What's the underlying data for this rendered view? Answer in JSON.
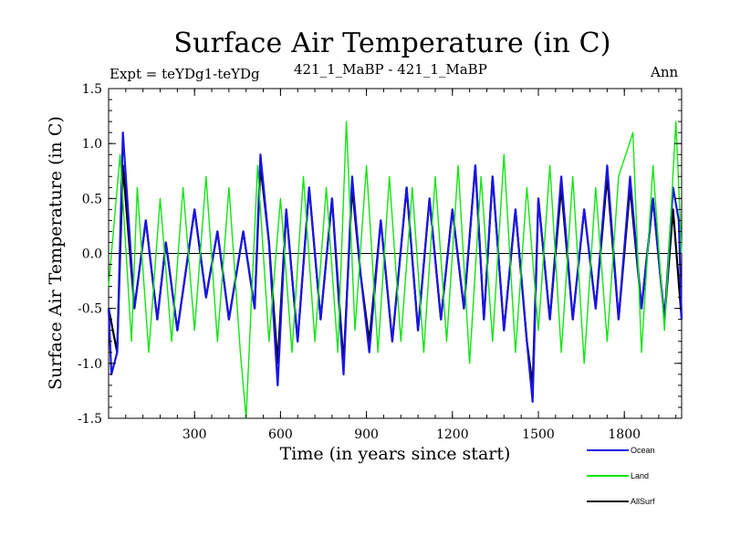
{
  "chart_data": {
    "type": "line",
    "title": "Surface Air Temperature (in C)",
    "subtitle_left": "Expt = teYDg1-teYDg",
    "subtitle_center": "421_1_MaBP - 421_1_MaBP",
    "subtitle_right": "Ann",
    "xlabel": "Time (in years since start)",
    "ylabel": "Surface Air Temperature (in C)",
    "xlim": [
      0,
      2000
    ],
    "ylim": [
      -1.5,
      1.5
    ],
    "xticks": [
      300,
      600,
      900,
      1200,
      1500,
      1800
    ],
    "xtick_labels": [
      "300",
      "600",
      "900",
      "1200",
      "1500",
      "1800"
    ],
    "yticks": [
      -1.5,
      -1.0,
      -0.5,
      0.0,
      0.5,
      1.0,
      1.5
    ],
    "ytick_labels": [
      "-1.5",
      "-1.0",
      "-0.5",
      "0.0",
      "0.5",
      "1.0",
      "1.5"
    ],
    "reference_line": 0.0,
    "legend_position": "bottom-right",
    "series": [
      {
        "name": "AllSurf",
        "color": "#000000",
        "x": [
          0,
          30,
          50,
          90,
          130,
          170,
          200,
          240,
          300,
          340,
          380,
          420,
          470,
          510,
          530,
          560,
          590,
          620,
          660,
          700,
          740,
          780,
          820,
          850,
          880,
          910,
          950,
          990,
          1040,
          1080,
          1120,
          1160,
          1200,
          1240,
          1280,
          1310,
          1340,
          1380,
          1420,
          1460,
          1480,
          1500,
          1540,
          1580,
          1620,
          1660,
          1700,
          1740,
          1780,
          1820,
          1860,
          1900,
          1940,
          1970,
          2000
        ],
        "y": [
          -0.5,
          -0.9,
          0.8,
          -0.5,
          0.3,
          -0.6,
          0.1,
          -0.7,
          0.4,
          -0.4,
          0.2,
          -0.6,
          0.2,
          -0.5,
          0.8,
          0.1,
          -1.0,
          0.4,
          -0.8,
          0.6,
          -0.6,
          0.5,
          -1.0,
          0.6,
          -0.2,
          -0.8,
          0.3,
          -0.8,
          0.6,
          -0.7,
          0.5,
          -0.6,
          0.4,
          -0.5,
          0.8,
          -0.6,
          0.7,
          -0.7,
          0.4,
          -0.8,
          -1.2,
          0.5,
          -0.6,
          0.6,
          -0.6,
          0.4,
          -0.5,
          0.7,
          -0.6,
          0.6,
          -0.5,
          0.5,
          -0.6,
          0.4,
          -0.6
        ]
      },
      {
        "name": "Ocean",
        "color": "#1a14e6",
        "x": [
          0,
          10,
          30,
          50,
          90,
          130,
          170,
          200,
          240,
          300,
          340,
          380,
          420,
          470,
          510,
          530,
          560,
          590,
          620,
          660,
          700,
          740,
          780,
          820,
          850,
          880,
          910,
          950,
          990,
          1040,
          1080,
          1120,
          1160,
          1200,
          1240,
          1280,
          1310,
          1340,
          1380,
          1420,
          1460,
          1480,
          1500,
          1540,
          1580,
          1620,
          1660,
          1700,
          1740,
          1780,
          1820,
          1860,
          1900,
          1940,
          1970,
          1990,
          2000
        ],
        "y": [
          -0.5,
          -1.1,
          -0.9,
          1.1,
          -0.5,
          0.3,
          -0.6,
          0.1,
          -0.7,
          0.4,
          -0.4,
          0.2,
          -0.6,
          0.2,
          -0.5,
          0.9,
          0.1,
          -1.2,
          0.4,
          -0.8,
          0.6,
          -0.6,
          0.5,
          -1.1,
          0.7,
          -0.2,
          -0.9,
          0.3,
          -0.8,
          0.6,
          -0.7,
          0.5,
          -0.6,
          0.4,
          -0.5,
          0.8,
          -0.6,
          0.7,
          -0.7,
          0.4,
          -0.8,
          -1.35,
          0.5,
          -0.6,
          0.7,
          -0.6,
          0.4,
          -0.5,
          0.8,
          -0.6,
          0.7,
          -0.5,
          0.5,
          -0.6,
          0.6,
          0.3,
          -0.6
        ]
      },
      {
        "name": "Land",
        "color": "#11e611",
        "x": [
          0,
          40,
          80,
          100,
          140,
          180,
          220,
          260,
          300,
          340,
          380,
          420,
          460,
          480,
          520,
          560,
          600,
          640,
          680,
          720,
          760,
          800,
          830,
          860,
          900,
          940,
          980,
          1020,
          1060,
          1100,
          1140,
          1180,
          1220,
          1260,
          1300,
          1340,
          1380,
          1420,
          1460,
          1500,
          1540,
          1580,
          1620,
          1660,
          1700,
          1740,
          1780,
          1830,
          1860,
          1900,
          1940,
          1980,
          2000
        ],
        "y": [
          -0.3,
          0.9,
          -0.8,
          0.6,
          -0.9,
          0.5,
          -0.8,
          0.6,
          -0.7,
          0.7,
          -0.8,
          0.6,
          -0.9,
          -1.5,
          0.8,
          -0.8,
          0.5,
          -0.9,
          0.7,
          -0.8,
          0.6,
          -0.9,
          1.2,
          -0.7,
          0.8,
          -0.9,
          0.7,
          -0.8,
          0.6,
          -0.9,
          0.7,
          -0.8,
          0.8,
          -1.0,
          0.7,
          -0.8,
          0.9,
          -0.9,
          0.6,
          -0.7,
          0.8,
          -0.9,
          0.7,
          -1.0,
          0.6,
          -0.8,
          0.7,
          1.1,
          -0.9,
          0.8,
          -0.7,
          1.2,
          0.0
        ]
      }
    ]
  }
}
